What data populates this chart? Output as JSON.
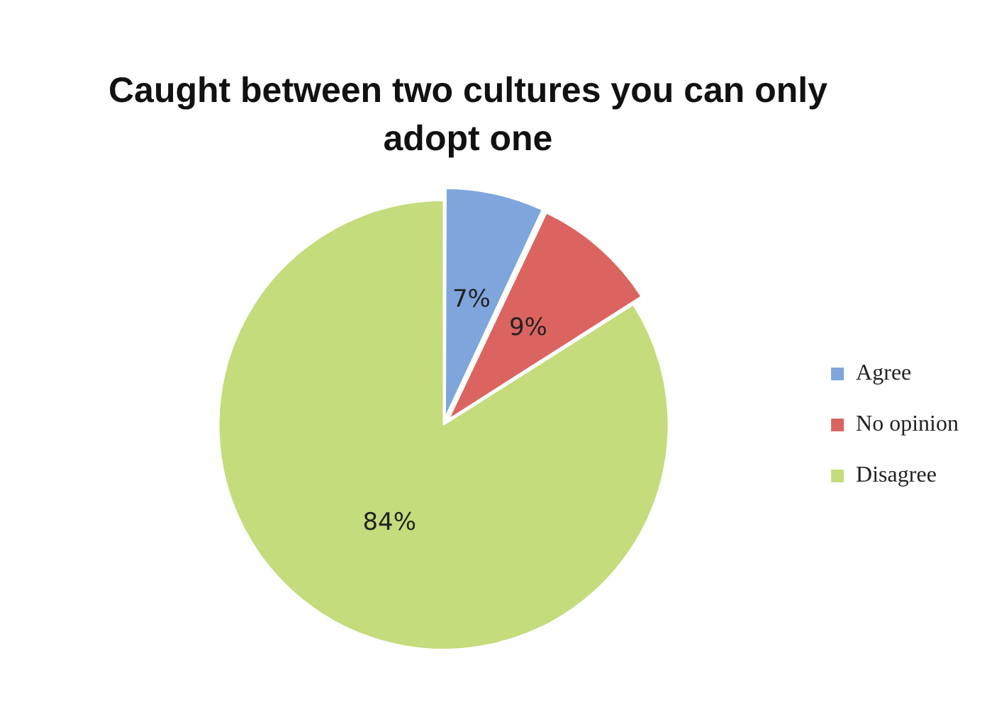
{
  "chart_data": {
    "type": "pie",
    "title": "Caught between two cultures you can only adopt one",
    "categories": [
      "Agree",
      "No opinion",
      "Disagree"
    ],
    "values": [
      7,
      9,
      84
    ],
    "colors": [
      "#7ea6dc",
      "#dc6460",
      "#c4dc7c"
    ],
    "value_labels": [
      "7%",
      "9%",
      "84%"
    ],
    "legend": "right"
  }
}
